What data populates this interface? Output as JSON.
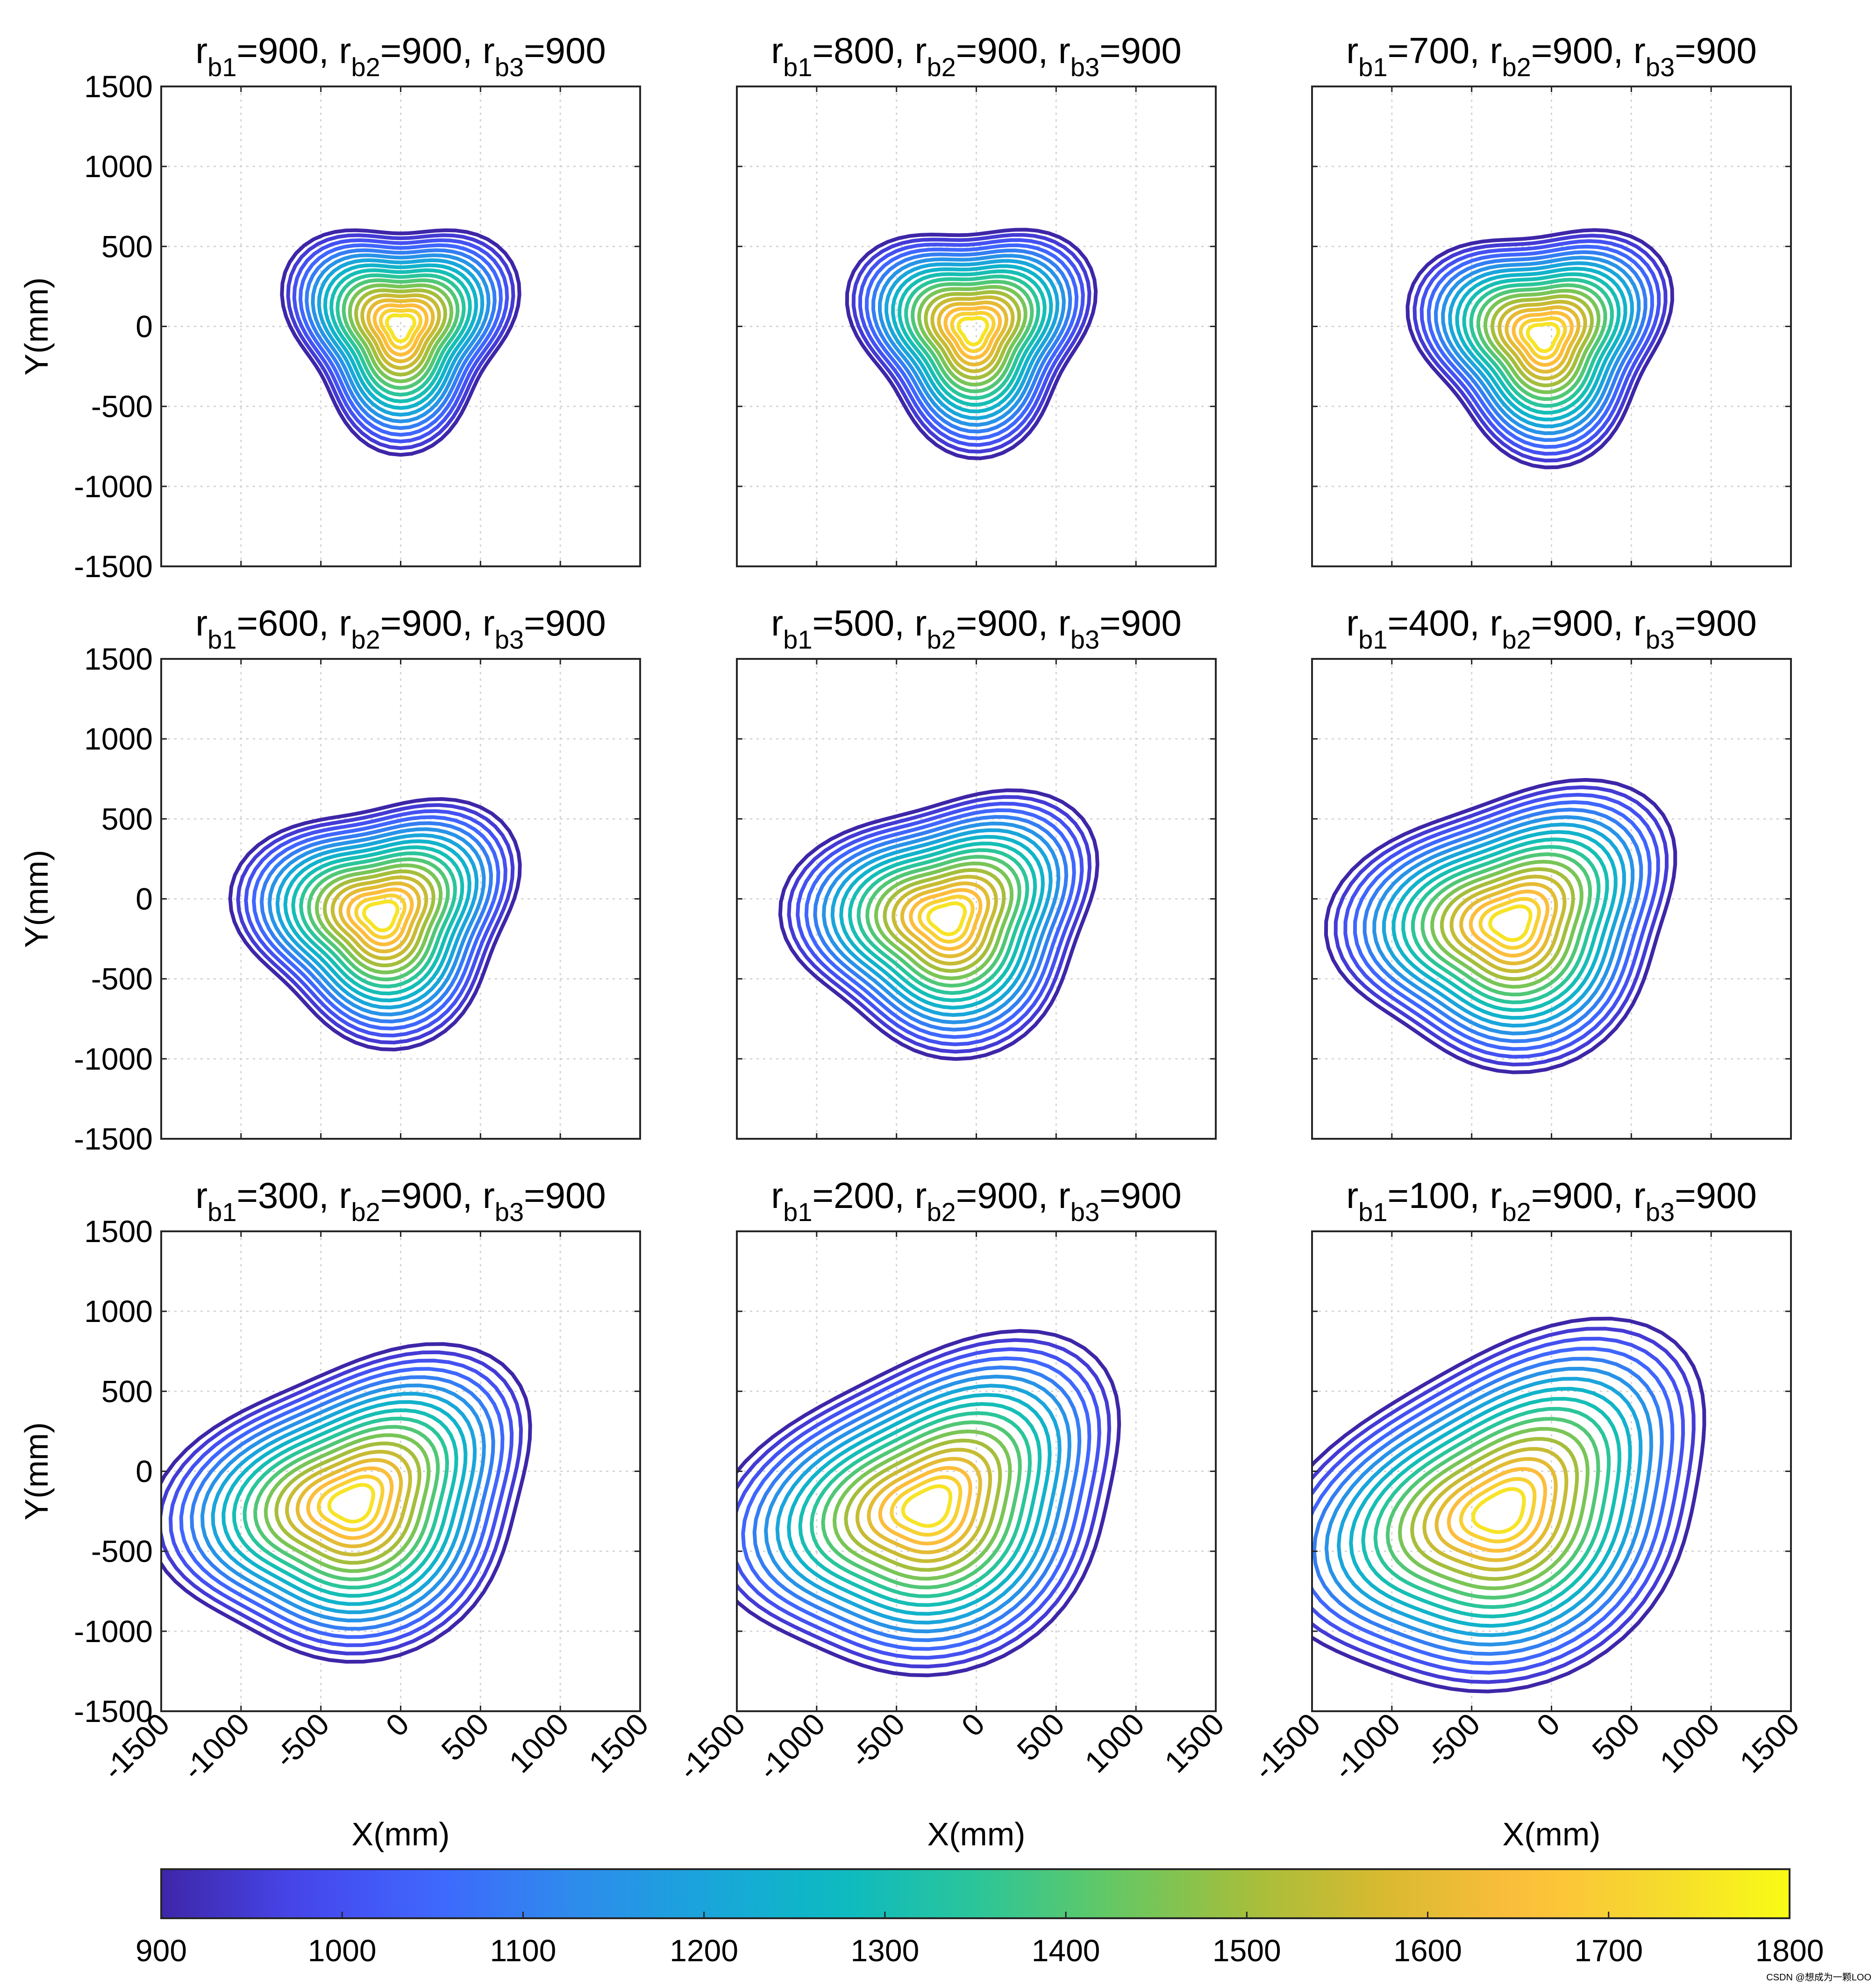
{
  "figure": {
    "x_label": "X(mm)",
    "y_label": "Y(mm)",
    "axis_range": [
      -1500,
      1500
    ],
    "ticks": [
      "-1500",
      "-1000",
      "-500",
      "0",
      "500",
      "1000",
      "1500"
    ],
    "y_ticks": [
      "1500",
      "1000",
      "500",
      "0",
      "-500",
      "-1000",
      "-1500"
    ]
  },
  "colorbar": {
    "min": 900,
    "max": 1800,
    "ticks": [
      "900",
      "1000",
      "1100",
      "1200",
      "1300",
      "1400",
      "1500",
      "1600",
      "1700",
      "1800"
    ],
    "colormap": [
      "#3e26a8",
      "#4746eb",
      "#3f66fe",
      "#2f8aed",
      "#1aa5db",
      "#0cbac2",
      "#2bc59a",
      "#64c864",
      "#a4be3c",
      "#d8ba30",
      "#fdbd3c",
      "#f6d92f",
      "#f9fb15"
    ]
  },
  "watermark": "CSDN @想成为一颗LOO",
  "chart_data": [
    {
      "type": "contour",
      "panel": 1,
      "title": {
        "p1": "r",
        "s1": "b1",
        "v1": "=900, r",
        "s2": "b2",
        "v2": "=900, r",
        "s3": "b3",
        "v3": "=900"
      },
      "rb1": 900,
      "rb2": 900,
      "rb3": 900,
      "xlim": [
        -1500,
        1500
      ],
      "ylim": [
        -1500,
        1500
      ],
      "level_min": 900,
      "level_max": 1750,
      "level_step": 50,
      "center": [
        0,
        0
      ],
      "skew": 0,
      "size": 1.0
    },
    {
      "type": "contour",
      "panel": 2,
      "title": {
        "p1": "r",
        "s1": "b1",
        "v1": "=800, r",
        "s2": "b2",
        "v2": "=900, r",
        "s3": "b3",
        "v3": "=900"
      },
      "rb1": 800,
      "rb2": 900,
      "rb3": 900,
      "xlim": [
        -1500,
        1500
      ],
      "ylim": [
        -1500,
        1500
      ],
      "level_min": 900,
      "level_max": 1750,
      "level_step": 50,
      "center": [
        -20,
        -20
      ],
      "skew": 0.06,
      "size": 1.02
    },
    {
      "type": "contour",
      "panel": 3,
      "title": {
        "p1": "r",
        "s1": "b1",
        "v1": "=700, r",
        "s2": "b2",
        "v2": "=900, r",
        "s3": "b3",
        "v3": "=900"
      },
      "rb1": 700,
      "rb2": 900,
      "rb3": 900,
      "xlim": [
        -1500,
        1500
      ],
      "ylim": [
        -1500,
        1500
      ],
      "level_min": 900,
      "level_max": 1750,
      "level_step": 50,
      "center": [
        -50,
        -60
      ],
      "skew": 0.12,
      "size": 1.06
    },
    {
      "type": "contour",
      "panel": 4,
      "title": {
        "p1": "r",
        "s1": "b1",
        "v1": "=600, r",
        "s2": "b2",
        "v2": "=900, r",
        "s3": "b3",
        "v3": "=900"
      },
      "rb1": 600,
      "rb2": 900,
      "rb3": 900,
      "xlim": [
        -1500,
        1500
      ],
      "ylim": [
        -1500,
        1500
      ],
      "level_min": 900,
      "level_max": 1750,
      "level_step": 50,
      "center": [
        -120,
        -100
      ],
      "skew": 0.22,
      "size": 1.12
    },
    {
      "type": "contour",
      "panel": 5,
      "title": {
        "p1": "r",
        "s1": "b1",
        "v1": "=500, r",
        "s2": "b2",
        "v2": "=900, r",
        "s3": "b3",
        "v3": "=900"
      },
      "rb1": 500,
      "rb2": 900,
      "rb3": 900,
      "xlim": [
        -1500,
        1500
      ],
      "ylim": [
        -1500,
        1500
      ],
      "level_min": 900,
      "level_max": 1750,
      "level_step": 50,
      "center": [
        -180,
        -120
      ],
      "skew": 0.3,
      "size": 1.2
    },
    {
      "type": "contour",
      "panel": 6,
      "title": {
        "p1": "r",
        "s1": "b1",
        "v1": "=400, r",
        "s2": "b2",
        "v2": "=900, r",
        "s3": "b3",
        "v3": "=900"
      },
      "rb1": 400,
      "rb2": 900,
      "rb3": 900,
      "xlim": [
        -1500,
        1500
      ],
      "ylim": [
        -1500,
        1500
      ],
      "level_min": 900,
      "level_max": 1750,
      "level_step": 50,
      "center": [
        -250,
        -150
      ],
      "skew": 0.38,
      "size": 1.3
    },
    {
      "type": "contour",
      "panel": 7,
      "title": {
        "p1": "r",
        "s1": "b1",
        "v1": "=300, r",
        "s2": "b2",
        "v2": "=900, r",
        "s3": "b3",
        "v3": "=900"
      },
      "rb1": 300,
      "rb2": 900,
      "rb3": 900,
      "xlim": [
        -1500,
        1500
      ],
      "ylim": [
        -1500,
        1500
      ],
      "level_min": 900,
      "level_max": 1750,
      "level_step": 50,
      "center": [
        -300,
        -200
      ],
      "skew": 0.46,
      "size": 1.4
    },
    {
      "type": "contour",
      "panel": 8,
      "title": {
        "p1": "r",
        "s1": "b1",
        "v1": "=200, r",
        "s2": "b2",
        "v2": "=900, r",
        "s3": "b3",
        "v3": "=900"
      },
      "rb1": 200,
      "rb2": 900,
      "rb3": 900,
      "xlim": [
        -1500,
        1500
      ],
      "ylim": [
        -1500,
        1500
      ],
      "level_min": 900,
      "level_max": 1750,
      "level_step": 50,
      "center": [
        -300,
        -220
      ],
      "skew": 0.52,
      "size": 1.5
    },
    {
      "type": "contour",
      "panel": 9,
      "title": {
        "p1": "r",
        "s1": "b1",
        "v1": "=100, r",
        "s2": "b2",
        "v2": "=900, r",
        "s3": "b3",
        "v3": "=900"
      },
      "rb1": 100,
      "rb2": 900,
      "rb3": 900,
      "xlim": [
        -1500,
        1500
      ],
      "ylim": [
        -1500,
        1500
      ],
      "level_min": 900,
      "level_max": 1750,
      "level_step": 50,
      "center": [
        -320,
        -250
      ],
      "skew": 0.58,
      "size": 1.6
    }
  ]
}
